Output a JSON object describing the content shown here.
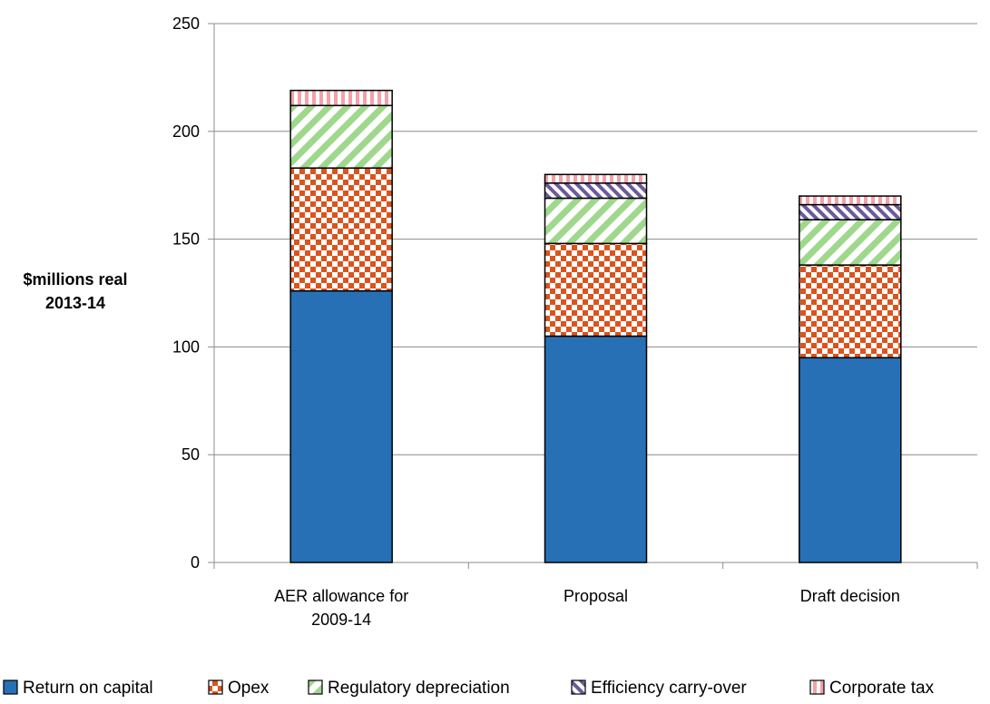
{
  "chart_data": {
    "type": "bar",
    "stacked": true,
    "ylabel": [
      "$millions real",
      "2013-14"
    ],
    "ylim": [
      0,
      250
    ],
    "yticks": [
      0,
      50,
      100,
      150,
      200,
      250
    ],
    "categories": [
      [
        "AER allowance for",
        "2009-14"
      ],
      [
        "Proposal"
      ],
      [
        "Draft decision"
      ]
    ],
    "series": [
      {
        "name": "Return on capital",
        "values": [
          126,
          105,
          95
        ],
        "color": "#2770b6",
        "pattern": "solid"
      },
      {
        "name": "Opex",
        "values": [
          57,
          43,
          43
        ],
        "color": "#d9541e",
        "pattern": "checker"
      },
      {
        "name": "Regulatory depreciation",
        "values": [
          29,
          21,
          21
        ],
        "color": "#9fd88d",
        "pattern": "diagonal"
      },
      {
        "name": "Efficiency carry-over",
        "values": [
          0,
          7,
          7
        ],
        "color": "#6a5a9c",
        "pattern": "diagonal-dense"
      },
      {
        "name": "Corporate tax",
        "values": [
          7,
          4,
          4
        ],
        "color": "#f4a0a8",
        "pattern": "vertical"
      }
    ],
    "grid": true,
    "legend_position": "bottom"
  }
}
